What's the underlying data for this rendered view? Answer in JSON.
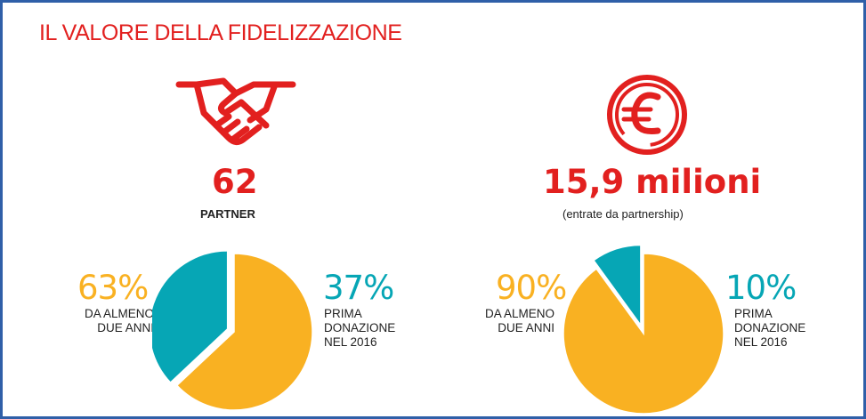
{
  "title": "IL VALORE DELLA FIDELIZZAZIONE",
  "colors": {
    "accent_red": "#e2201f",
    "gold": "#f9b122",
    "teal": "#06a6b5",
    "frame_blue": "#2f5fa8"
  },
  "left": {
    "icon": "handshake-icon",
    "value": "62",
    "label": "PARTNER"
  },
  "right": {
    "icon": "euro-icon",
    "value": "15,9 milioni",
    "label": "(entrate da partnership)"
  },
  "chart_data": [
    {
      "type": "pie",
      "title": "",
      "slices": [
        {
          "label": "DA ALMENO DUE ANNI",
          "value": 63,
          "display": "63%",
          "color": "#f9b122"
        },
        {
          "label": "PRIMA DONAZIONE NEL 2016",
          "value": 37,
          "display": "37%",
          "color": "#06a6b5"
        }
      ],
      "exploded": "PRIMA DONAZIONE NEL 2016"
    },
    {
      "type": "pie",
      "title": "",
      "slices": [
        {
          "label": "DA ALMENO DUE ANNI",
          "value": 90,
          "display": "90%",
          "color": "#f9b122"
        },
        {
          "label": "PRIMA DONAZIONE NEL 2016",
          "value": 10,
          "display": "10%",
          "color": "#06a6b5"
        }
      ],
      "exploded": "PRIMA DONAZIONE NEL 2016"
    }
  ],
  "left_chart": {
    "gold_pct": "63%",
    "gold_desc": "DA ALMENO\nDUE ANNI",
    "teal_pct": "37%",
    "teal_desc": "PRIMA\nDONAZIONE\nNEL 2016"
  },
  "right_chart": {
    "gold_pct": "90%",
    "gold_desc": "DA ALMENO\nDUE ANNI",
    "teal_pct": "10%",
    "teal_desc": "PRIMA\nDONAZIONE\nNEL 2016"
  }
}
